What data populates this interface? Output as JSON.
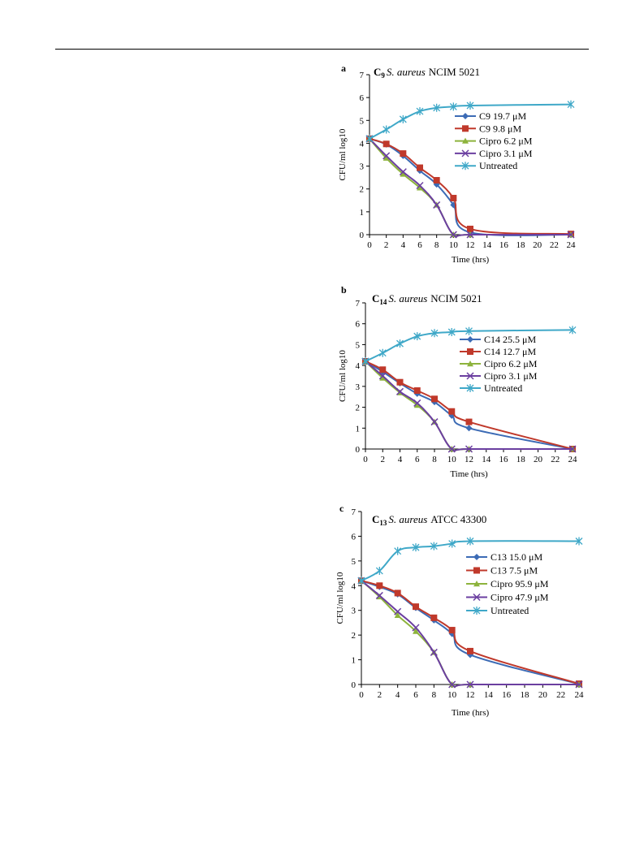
{
  "chart_data": [
    {
      "type": "line",
      "panel_letter": "a",
      "title_compound": "C",
      "title_sub": "9",
      "title_species": "S. aureus",
      "title_strain": "NCIM 5021",
      "xlabel": "Time (hrs)",
      "ylabel": "CFU/ml log10",
      "xticks": [
        "0",
        "2",
        "4",
        "6",
        "8",
        "10",
        "12",
        "14",
        "16",
        "18",
        "20",
        "22",
        "24"
      ],
      "yticks": [
        "0",
        "1",
        "2",
        "3",
        "4",
        "5",
        "6",
        "7"
      ],
      "xlim": [
        0,
        24
      ],
      "ylim": [
        0,
        7
      ],
      "legend_position": "right",
      "series": [
        {
          "name": "C9 19.7 μM",
          "color": "#3C6BB5",
          "marker": "diamond",
          "x": [
            0,
            2,
            4,
            6,
            8,
            10,
            12,
            24
          ],
          "y": [
            4.2,
            3.95,
            3.45,
            2.8,
            2.2,
            1.3,
            0.1,
            0.0
          ]
        },
        {
          "name": "C9 9.8 μM",
          "color": "#C0392B",
          "marker": "square",
          "x": [
            0,
            2,
            4,
            6,
            8,
            10,
            12,
            24
          ],
          "y": [
            4.2,
            3.97,
            3.55,
            2.93,
            2.38,
            1.6,
            0.25,
            0.03
          ]
        },
        {
          "name": "Cipro 6.2 μM",
          "color": "#8DB33C",
          "marker": "triangle",
          "x": [
            0,
            2,
            4,
            6,
            8,
            10,
            12,
            24
          ],
          "y": [
            4.2,
            3.35,
            2.65,
            2.05,
            1.3,
            0.0,
            0.0,
            0.0
          ]
        },
        {
          "name": "Cipro 3.1 μM",
          "color": "#6B3FA0",
          "marker": "x",
          "x": [
            0,
            2,
            4,
            6,
            8,
            10,
            12,
            24
          ],
          "y": [
            4.2,
            3.45,
            2.75,
            2.15,
            1.3,
            0.0,
            0.0,
            0.0
          ]
        },
        {
          "name": "Untreated",
          "color": "#3FA8C8",
          "marker": "star",
          "x": [
            0,
            2,
            4,
            6,
            8,
            10,
            12,
            24
          ],
          "y": [
            4.2,
            4.6,
            5.05,
            5.4,
            5.55,
            5.6,
            5.65,
            5.7
          ]
        }
      ]
    },
    {
      "type": "line",
      "panel_letter": "b",
      "title_compound": "C",
      "title_sub": "14",
      "title_species": "S. aureus",
      "title_strain": "NCIM 5021",
      "xlabel": "Time (hrs)",
      "ylabel": "CFU/ml log10",
      "xticks": [
        "0",
        "2",
        "4",
        "6",
        "8",
        "10",
        "12",
        "14",
        "16",
        "18",
        "20",
        "22",
        "24"
      ],
      "yticks": [
        "0",
        "1",
        "2",
        "3",
        "4",
        "5",
        "6",
        "7"
      ],
      "xlim": [
        0,
        24
      ],
      "ylim": [
        0,
        7
      ],
      "legend_position": "right",
      "series": [
        {
          "name": "C14 25.5 μM",
          "color": "#3C6BB5",
          "marker": "diamond",
          "x": [
            0,
            2,
            4,
            6,
            8,
            10,
            12,
            24
          ],
          "y": [
            4.2,
            3.7,
            3.15,
            2.65,
            2.25,
            1.6,
            1.0,
            0.0
          ]
        },
        {
          "name": "C14 12.7 μM",
          "color": "#C0392B",
          "marker": "square",
          "x": [
            0,
            2,
            4,
            6,
            8,
            10,
            12,
            24
          ],
          "y": [
            4.2,
            3.8,
            3.2,
            2.8,
            2.4,
            1.8,
            1.3,
            0.0
          ]
        },
        {
          "name": "Cipro 6.2 μM",
          "color": "#8DB33C",
          "marker": "triangle",
          "x": [
            0,
            2,
            4,
            6,
            8,
            10,
            12,
            24
          ],
          "y": [
            4.2,
            3.4,
            2.7,
            2.1,
            1.3,
            0.0,
            0.0,
            0.0
          ]
        },
        {
          "name": "Cipro 3.1 μM",
          "color": "#6B3FA0",
          "marker": "x",
          "x": [
            0,
            2,
            4,
            6,
            8,
            10,
            12,
            24
          ],
          "y": [
            4.2,
            3.5,
            2.75,
            2.2,
            1.3,
            0.0,
            0.0,
            0.0
          ]
        },
        {
          "name": "Untreated",
          "color": "#3FA8C8",
          "marker": "star",
          "x": [
            0,
            2,
            4,
            6,
            8,
            10,
            12,
            24
          ],
          "y": [
            4.2,
            4.6,
            5.05,
            5.4,
            5.55,
            5.6,
            5.65,
            5.7
          ]
        }
      ]
    },
    {
      "type": "line",
      "panel_letter": "c",
      "title_compound": "C",
      "title_sub": "13",
      "title_species": "S. aureus",
      "title_strain": "ATCC 43300",
      "xlabel": "Time (hrs)",
      "ylabel": "CFU/ml log10",
      "xticks": [
        "0",
        "2",
        "4",
        "6",
        "8",
        "10",
        "12",
        "14",
        "16",
        "18",
        "20",
        "22",
        "24"
      ],
      "yticks": [
        "0",
        "1",
        "2",
        "3",
        "4",
        "5",
        "6",
        "7"
      ],
      "xlim": [
        0,
        24
      ],
      "ylim": [
        0,
        7
      ],
      "legend_position": "right",
      "series": [
        {
          "name": "C13 15.0 μM",
          "color": "#3C6BB5",
          "marker": "diamond",
          "x": [
            0,
            2,
            4,
            6,
            8,
            10,
            12,
            24
          ],
          "y": [
            4.2,
            3.95,
            3.65,
            3.1,
            2.6,
            2.05,
            1.2,
            0.02
          ]
        },
        {
          "name": "C13 7.5 μM",
          "color": "#C0392B",
          "marker": "square",
          "x": [
            0,
            2,
            4,
            6,
            8,
            10,
            12,
            24
          ],
          "y": [
            4.2,
            4.0,
            3.7,
            3.15,
            2.7,
            2.2,
            1.35,
            0.03
          ]
        },
        {
          "name": "Cipro 95.9 μM",
          "color": "#8DB33C",
          "marker": "triangle",
          "x": [
            0,
            2,
            4,
            6,
            8,
            10,
            12,
            24
          ],
          "y": [
            4.2,
            3.55,
            2.8,
            2.15,
            1.3,
            0.0,
            0.0,
            0.0
          ]
        },
        {
          "name": "Cipro 47.9 μM",
          "color": "#6B3FA0",
          "marker": "x",
          "x": [
            0,
            2,
            4,
            6,
            8,
            10,
            12,
            24
          ],
          "y": [
            4.2,
            3.6,
            2.95,
            2.3,
            1.3,
            0.0,
            0.0,
            0.0
          ]
        },
        {
          "name": "Untreated",
          "color": "#3FA8C8",
          "marker": "star",
          "x": [
            0,
            2,
            4,
            6,
            8,
            10,
            12,
            24
          ],
          "y": [
            4.2,
            4.6,
            5.4,
            5.55,
            5.6,
            5.7,
            5.8,
            5.8
          ]
        }
      ]
    }
  ]
}
